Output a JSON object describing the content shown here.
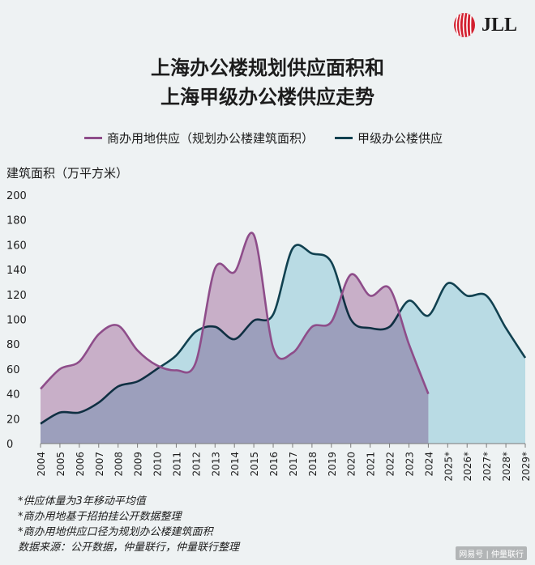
{
  "brand": {
    "name": "JLL",
    "logo_color": "#d2202f"
  },
  "title_lines": [
    "上海办公楼规划供应面积和",
    "上海甲级办公楼供应走势"
  ],
  "y_axis_label": "建筑面积（万平方米）",
  "notes": [
    "*供应体量为3年移动平均值",
    "*商办用地基于招拍挂公开数据整理",
    "*商办用地供应口径为规划办公楼建筑面积",
    "数据来源：公开数据，仲量联行，仲量联行整理"
  ],
  "watermark": "网易号 | 仲量联行",
  "chart_data": {
    "type": "area",
    "x": [
      "2004",
      "2005",
      "2006",
      "2007",
      "2008",
      "2009",
      "2010",
      "2011",
      "2012",
      "2013",
      "2014",
      "2015",
      "2016",
      "2017",
      "2018",
      "2019",
      "2020",
      "2021",
      "2022",
      "2023",
      "2024",
      "2025*",
      "2026*",
      "2027*",
      "2028*",
      "2029*"
    ],
    "ylim": [
      0,
      200
    ],
    "yticks": [
      0,
      20,
      40,
      60,
      80,
      100,
      120,
      140,
      160,
      180,
      200
    ],
    "grid": false,
    "legend_position": "top",
    "series": [
      {
        "name": "商办用地供应（规划办公楼建筑面积）",
        "line_color": "#8e4d8a",
        "fill_color": "#d7b9d2",
        "values": [
          44,
          60,
          66,
          88,
          95,
          75,
          63,
          59,
          65,
          141,
          138,
          168,
          77,
          73,
          94,
          98,
          136,
          119,
          125,
          80,
          40,
          null,
          null,
          null,
          null,
          null
        ]
      },
      {
        "name": "甲级办公楼供应",
        "line_color": "#114150",
        "fill_color": "#b9dbe4",
        "values": [
          16,
          25,
          25,
          33,
          46,
          50,
          60,
          71,
          90,
          94,
          84,
          99,
          104,
          157,
          153,
          146,
          100,
          93,
          94,
          115,
          103,
          129,
          119,
          119,
          93,
          69
        ]
      }
    ]
  }
}
